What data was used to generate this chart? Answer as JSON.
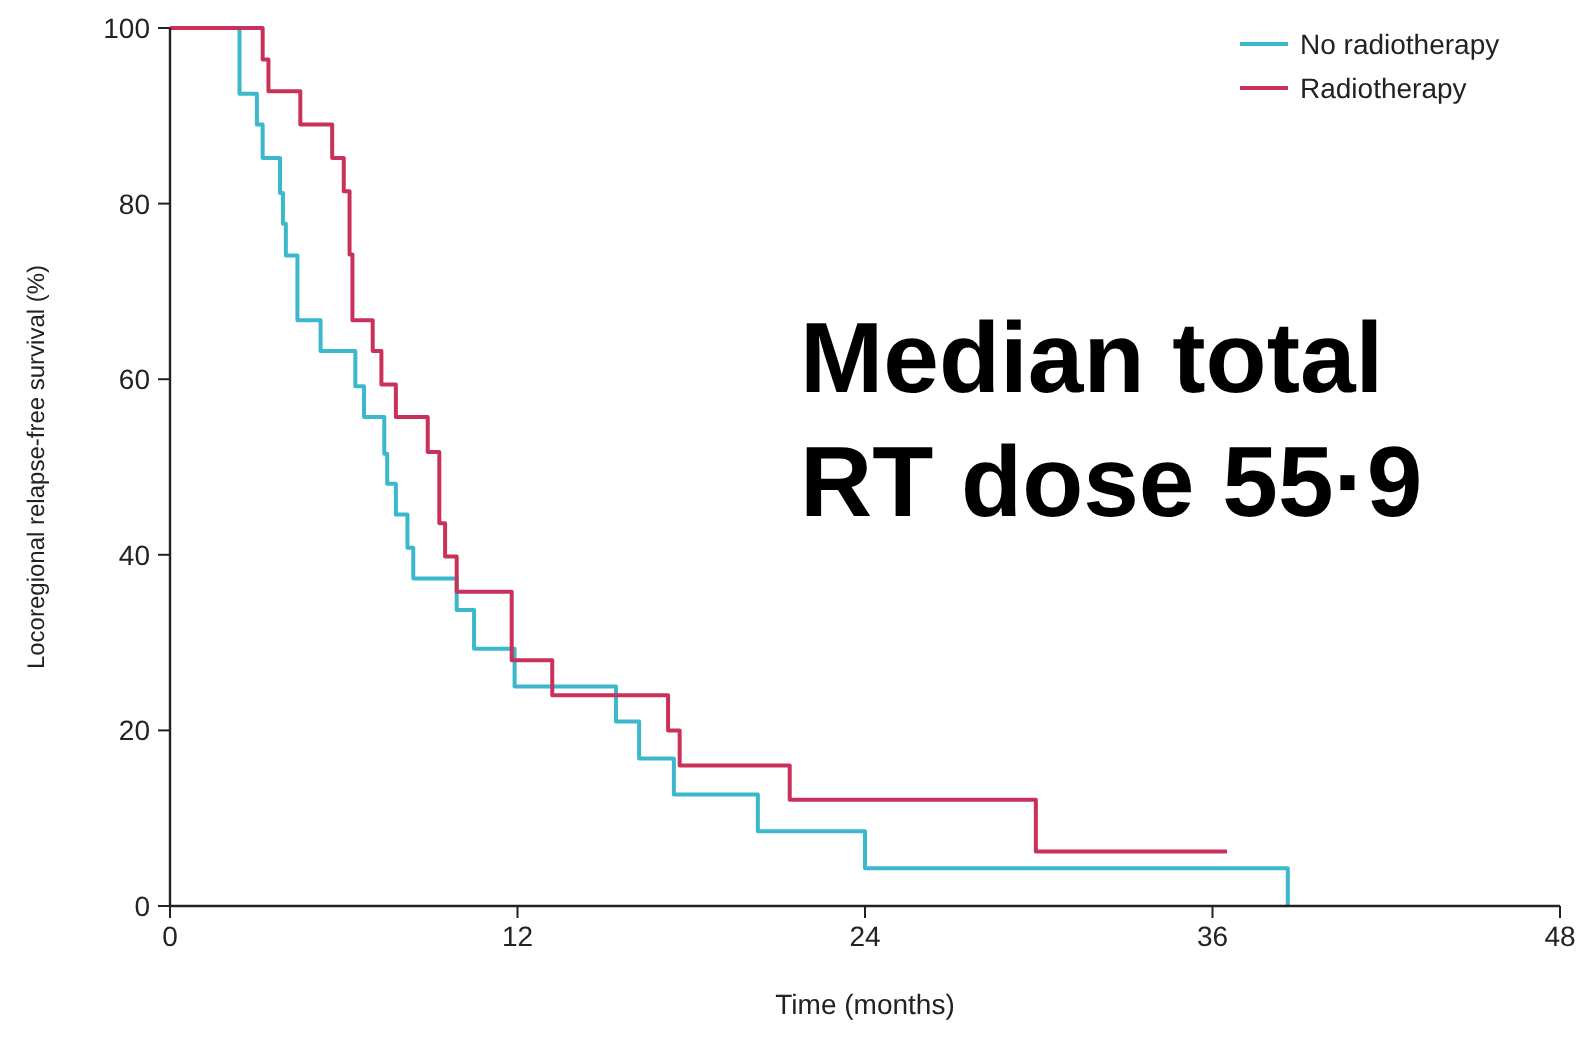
{
  "chart_data": {
    "type": "step",
    "xlabel": "Time (months)",
    "ylabel": "Locoregional relapse-free survival (%)",
    "xlim": [
      0,
      48
    ],
    "xticks": [
      0,
      12,
      24,
      36,
      48
    ],
    "ylim": [
      0,
      100
    ],
    "yticks": [
      0,
      20,
      40,
      60,
      80,
      100
    ],
    "legend": "top right",
    "line_style": "solid",
    "annotations": [
      "Median total",
      "RT dose 55·9"
    ],
    "series": [
      {
        "name": "No radiotherapy",
        "color": "#3bb8cc",
        "x": [
          0,
          2.4,
          3,
          3.2,
          3.8,
          3.9,
          4,
          4.4,
          4.4,
          5.2,
          6.4,
          6.7,
          7.4,
          7.5,
          7.8,
          8.2,
          8.4,
          9.9,
          10.5,
          11.9,
          15.4,
          16.2,
          17.4,
          20.3,
          24,
          38.6
        ],
        "values": [
          100,
          92.5,
          89,
          85.2,
          81.2,
          77.7,
          74.1,
          70.5,
          66.7,
          63.2,
          59.2,
          55.7,
          51.5,
          48.1,
          44.6,
          40.8,
          37.3,
          33.7,
          29.3,
          25,
          21,
          16.8,
          12.7,
          8.5,
          4.3,
          0
        ]
      },
      {
        "name": "Radiotherapy",
        "color": "#c8325a",
        "x": [
          0,
          3.2,
          3.4,
          4.5,
          5.6,
          6,
          6.2,
          6.3,
          7,
          7.3,
          7.8,
          8.9,
          9.3,
          9.5,
          9.9,
          11.8,
          13.2,
          17.2,
          17.6,
          21.4,
          29.9,
          36.5
        ],
        "values": [
          100,
          96.4,
          92.8,
          89,
          85.2,
          81.4,
          74.2,
          66.7,
          63.2,
          59.4,
          55.7,
          51.7,
          43.6,
          39.8,
          35.8,
          28,
          24,
          20,
          16,
          12.1,
          6.2,
          6.2
        ]
      }
    ]
  }
}
